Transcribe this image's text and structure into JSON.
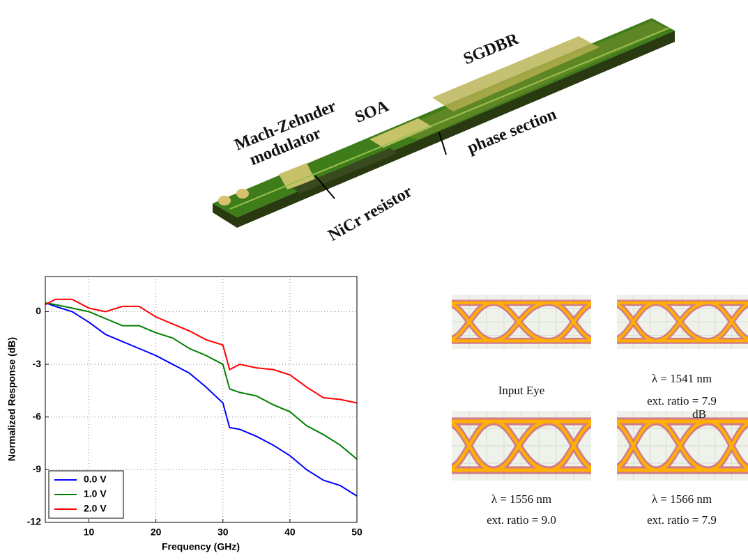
{
  "chip": {
    "labels": [
      "Mach-Zehnder",
      "modulator",
      "SOA",
      "SGDBR",
      "phase section",
      "NiCr resistor"
    ]
  },
  "chart_data": {
    "type": "line",
    "xlabel": "Frequency (GHz)",
    "ylabel": "Normalized Response (dB)",
    "x": [
      3.5,
      5,
      7.5,
      10,
      12.5,
      15,
      17.5,
      20,
      22.5,
      25,
      27.5,
      30,
      31,
      32.5,
      35,
      37.5,
      40,
      42.5,
      45,
      47.5,
      50
    ],
    "series": [
      {
        "name": "0.0 V",
        "color": "#0000ff",
        "values": [
          0.5,
          0.3,
          0,
          -0.6,
          -1.3,
          -1.7,
          -2.1,
          -2.5,
          -3.0,
          -3.5,
          -4.3,
          -5.2,
          -6.6,
          -6.7,
          -7.1,
          -7.6,
          -8.2,
          -9.0,
          -9.6,
          -9.9,
          -10.5
        ]
      },
      {
        "name": "1.0 V",
        "color": "#008000",
        "values": [
          0.5,
          0.4,
          0.2,
          0,
          -0.4,
          -0.8,
          -0.8,
          -1.2,
          -1.5,
          -2.1,
          -2.5,
          -3.0,
          -4.4,
          -4.6,
          -4.8,
          -5.3,
          -5.7,
          -6.5,
          -7.0,
          -7.6,
          -8.4
        ]
      },
      {
        "name": "2.0 V",
        "color": "#ff0000",
        "values": [
          0.4,
          0.7,
          0.7,
          0.2,
          0.0,
          0.3,
          0.3,
          -0.3,
          -0.7,
          -1.1,
          -1.6,
          -1.9,
          -3.3,
          -3.0,
          -3.2,
          -3.3,
          -3.6,
          -4.3,
          -4.9,
          -5.0,
          -5.2
        ]
      }
    ],
    "xlim": [
      3.5,
      50
    ],
    "ylim": [
      -12,
      2
    ],
    "xticks": [
      10,
      20,
      30,
      40,
      50
    ],
    "yticks": [
      0,
      -3,
      -6,
      -9,
      -12
    ],
    "grid": true,
    "legend": "lower-left"
  },
  "eyes": {
    "input": "Input Eye",
    "eye1541": [
      "λ = 1541 nm",
      "ext. ratio = 7.9",
      "dB"
    ],
    "eye1556": [
      "λ = 1556 nm",
      "ext. ratio = 9.0"
    ],
    "eye1566": [
      "λ = 1566 nm",
      "ext. ratio = 7.9"
    ]
  }
}
